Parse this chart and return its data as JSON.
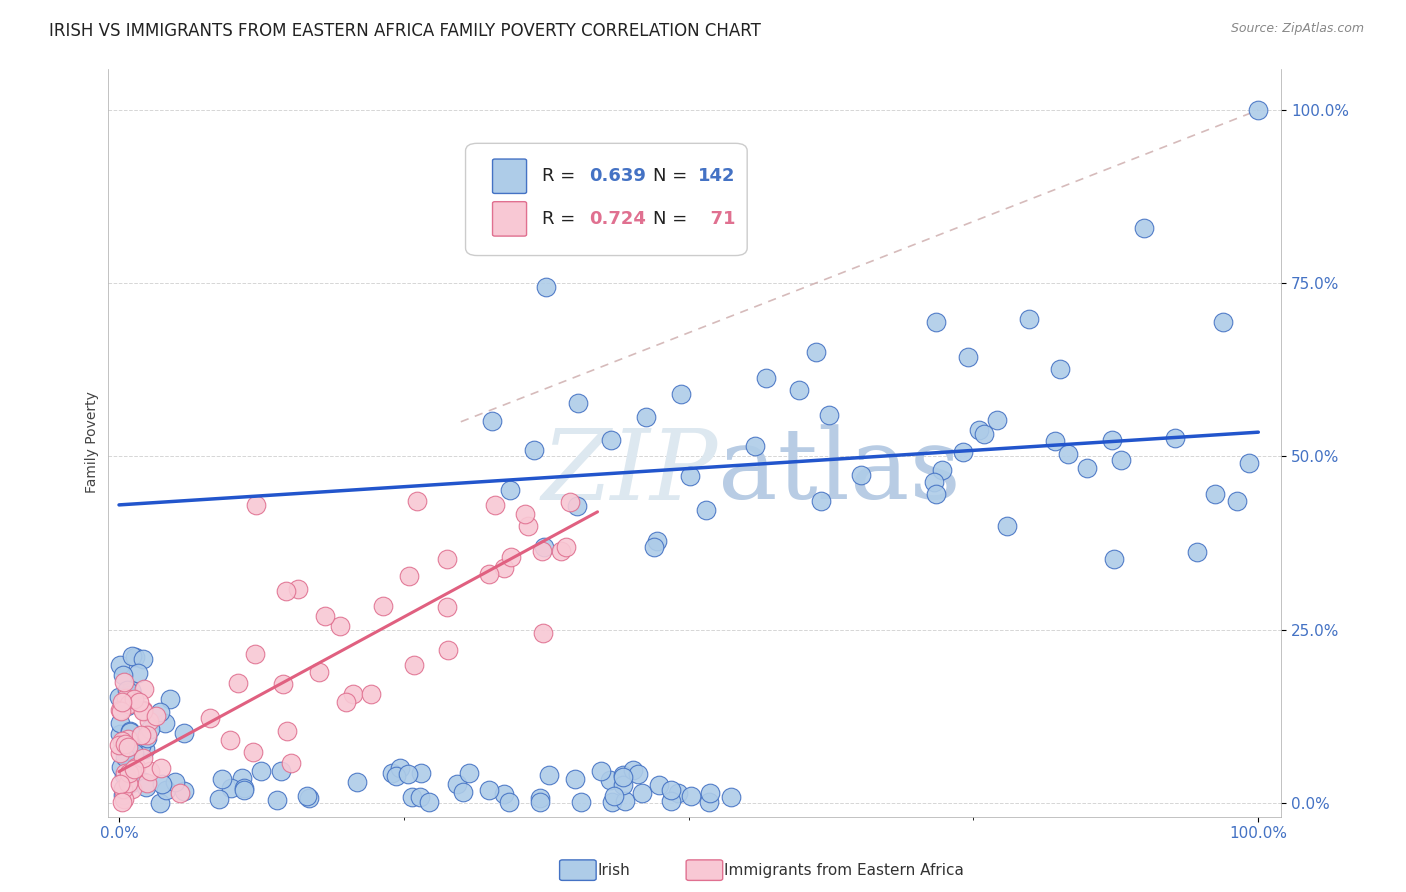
{
  "title": "IRISH VS IMMIGRANTS FROM EASTERN AFRICA FAMILY POVERTY CORRELATION CHART",
  "source": "Source: ZipAtlas.com",
  "ylabel": "Family Poverty",
  "ytick_labels": [
    "0.0%",
    "25.0%",
    "50.0%",
    "75.0%",
    "100.0%"
  ],
  "ytick_values": [
    0.0,
    0.25,
    0.5,
    0.75,
    1.0
  ],
  "xtick_labels": [
    "0.0%",
    "100.0%"
  ],
  "xtick_values": [
    0.0,
    1.0
  ],
  "xlim": [
    0.0,
    1.0
  ],
  "ylim": [
    0.0,
    1.0
  ],
  "irish_R": 0.639,
  "irish_N": 142,
  "eastern_africa_R": 0.724,
  "eastern_africa_N": 71,
  "irish_color": "#aecce8",
  "irish_edge_color": "#4472c4",
  "eastern_africa_color": "#f8c8d4",
  "eastern_africa_edge_color": "#e07090",
  "irish_line_color": "#2255cc",
  "eastern_africa_line_color": "#e06080",
  "ref_line_color": "#ccaaaa",
  "background_color": "#ffffff",
  "watermark_color": "#dde8f0",
  "title_fontsize": 12,
  "axis_label_fontsize": 10,
  "tick_fontsize": 11,
  "legend_fontsize": 13,
  "irish_line_x0": 0.0,
  "irish_line_y0": 0.43,
  "irish_line_x1": 1.0,
  "irish_line_y1": 0.535,
  "ea_line_x0": 0.0,
  "ea_line_y0": 0.045,
  "ea_line_x1": 0.42,
  "ea_line_y1": 0.42,
  "ref_line_x0": 0.3,
  "ref_line_y0": 0.55,
  "ref_line_x1": 1.0,
  "ref_line_y1": 1.0
}
